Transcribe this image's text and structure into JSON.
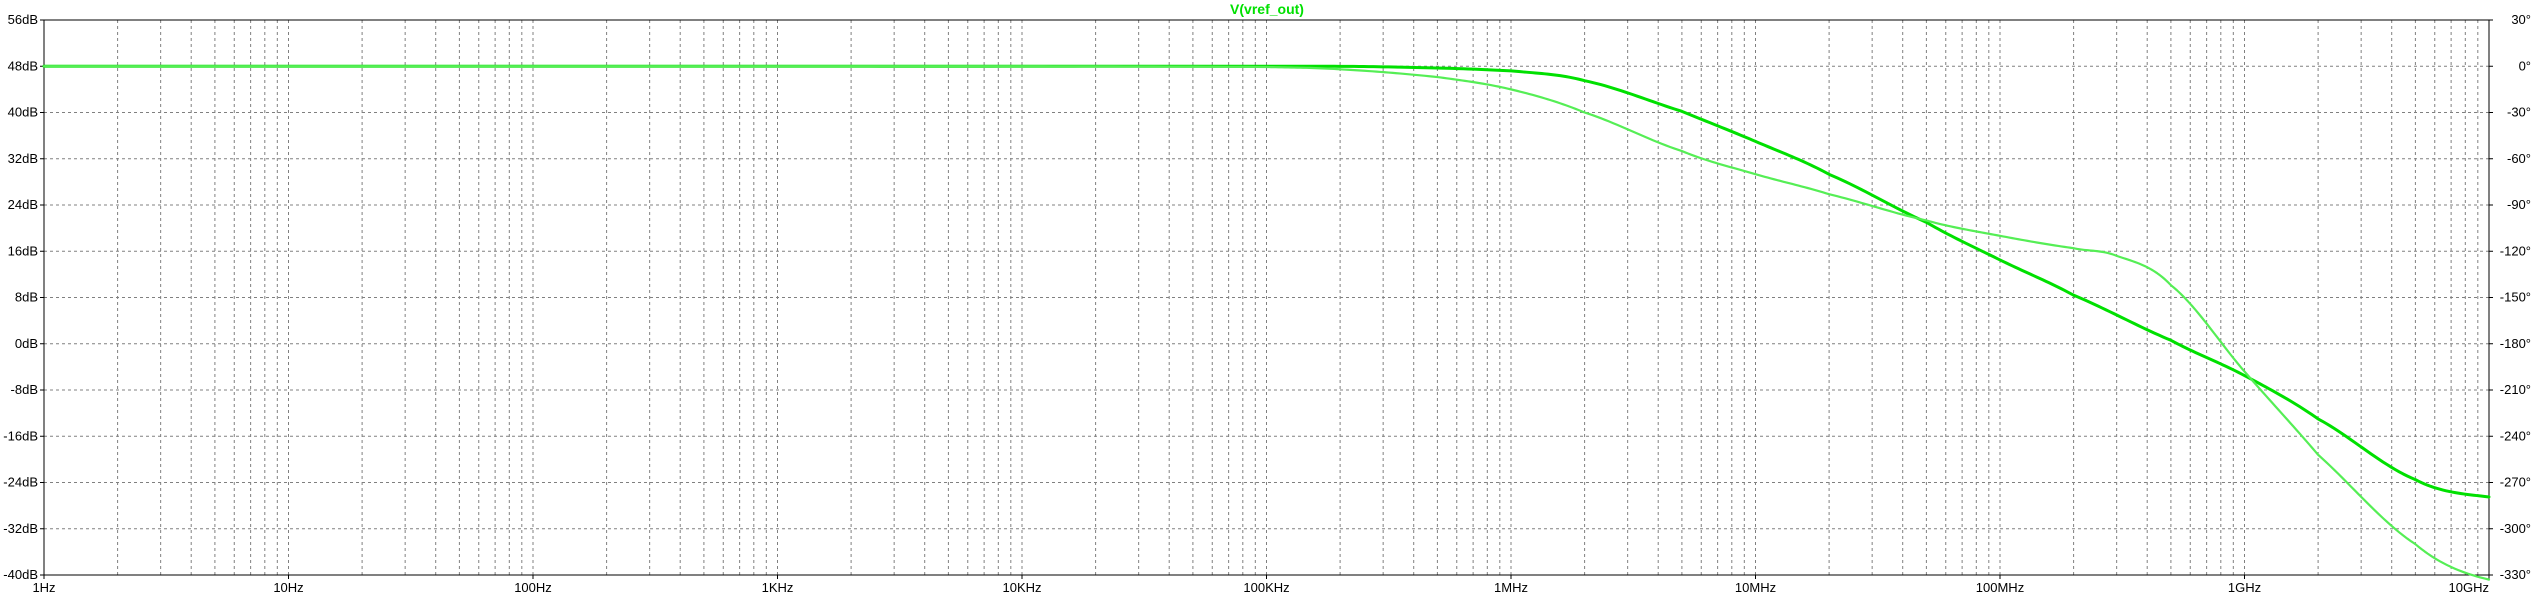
{
  "chart_data": {
    "type": "line",
    "title": "V(vref_out)",
    "x_scale": "log",
    "xlim": [
      1,
      10000000000
    ],
    "x_tick_labels": [
      "1Hz",
      "10Hz",
      "100Hz",
      "1KHz",
      "10KHz",
      "100KHz",
      "1MHz",
      "10MHz",
      "100MHz",
      "1GHz",
      "10GHz"
    ],
    "x_tick_values": [
      1,
      10,
      100,
      1000,
      10000,
      100000,
      1000000,
      10000000,
      100000000,
      1000000000,
      10000000000
    ],
    "y_left": {
      "unit": "dB",
      "lim": [
        -40,
        56
      ],
      "tick_labels": [
        "56dB",
        "48dB",
        "40dB",
        "32dB",
        "24dB",
        "16dB",
        "8dB",
        "0dB",
        "-8dB",
        "-16dB",
        "-24dB",
        "-32dB",
        "-40dB"
      ],
      "tick_values": [
        56,
        48,
        40,
        32,
        24,
        16,
        8,
        0,
        -8,
        -16,
        -24,
        -32,
        -40
      ]
    },
    "y_right": {
      "unit": "degree",
      "lim": [
        -330,
        30
      ],
      "tick_labels": [
        "30°",
        "0°",
        "-30°",
        "-60°",
        "-90°",
        "-120°",
        "-150°",
        "-180°",
        "-210°",
        "-240°",
        "-270°",
        "-300°",
        "-330°"
      ],
      "tick_values": [
        30,
        0,
        -30,
        -60,
        -90,
        -120,
        -150,
        -180,
        -210,
        -240,
        -270,
        -300,
        -330
      ]
    },
    "grid": true,
    "series": [
      {
        "axis": "left",
        "color": "#00e000",
        "x": [
          1,
          10,
          100,
          1000,
          10000,
          100000,
          300000,
          1000000,
          2000000,
          5000000,
          10000000,
          20000000,
          50000000,
          100000000,
          200000000,
          500000000,
          1000000000,
          2000000000,
          5000000000,
          10000000000
        ],
        "values": [
          48,
          48,
          48,
          48,
          48,
          48,
          47.9,
          47.2,
          45.5,
          40.2,
          35,
          29.3,
          21,
          14.5,
          8.4,
          0.6,
          -5.5,
          -13,
          -23.5,
          -26.5
        ]
      },
      {
        "axis": "right",
        "color": "#55ee55",
        "x": [
          1,
          10,
          100,
          1000,
          10000,
          100000,
          200000,
          500000,
          1000000,
          2000000,
          5000000,
          10000000,
          20000000,
          50000000,
          100000000,
          200000000,
          300000000,
          500000000,
          1000000000,
          2000000000,
          5000000000,
          10000000000
        ],
        "values": [
          0,
          0,
          0,
          0,
          0,
          -0.5,
          -2,
          -7,
          -15,
          -30,
          -55,
          -70,
          -83,
          -100,
          -110,
          -118,
          -123,
          -142,
          -198,
          -252,
          -310,
          -333
        ]
      }
    ]
  }
}
